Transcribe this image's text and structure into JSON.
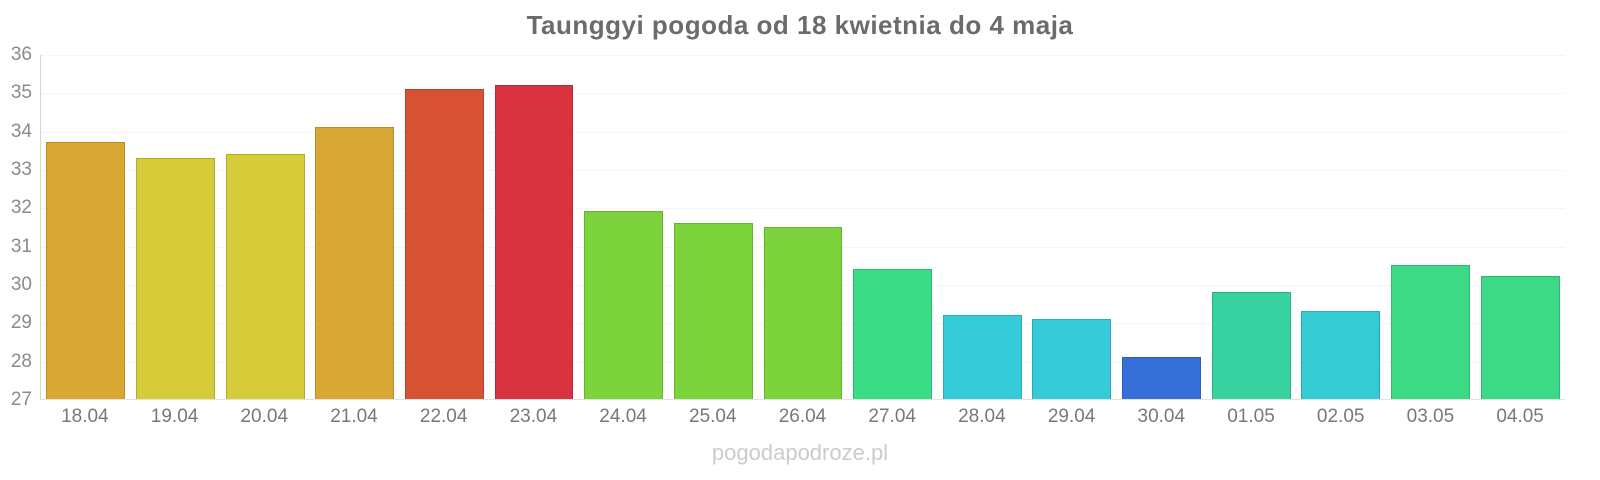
{
  "watermark": "pogodapodroze.pl",
  "chart_data": {
    "type": "bar",
    "title": "Taunggyi pogoda od 18 kwietnia do 4 maja",
    "xlabel": "",
    "ylabel": "",
    "ylim": [
      27,
      36
    ],
    "yticks": [
      36,
      35,
      34,
      33,
      32,
      31,
      30,
      29,
      28,
      27
    ],
    "grid": true,
    "legend": false,
    "categories": [
      "18.04",
      "19.04",
      "20.04",
      "21.04",
      "22.04",
      "23.04",
      "24.04",
      "25.04",
      "26.04",
      "27.04",
      "28.04",
      "29.04",
      "30.04",
      "01.05",
      "02.05",
      "03.05",
      "04.05"
    ],
    "values": [
      33.7,
      33.3,
      33.4,
      34.1,
      35.1,
      35.2,
      31.9,
      31.6,
      31.5,
      30.4,
      29.2,
      29.1,
      28.1,
      29.8,
      29.3,
      30.5,
      30.2
    ],
    "colors": [
      "#d9a834",
      "#d6cc39",
      "#d6cc39",
      "#d9a834",
      "#d65232",
      "#d8333e",
      "#7cd33c",
      "#7cd33c",
      "#7cd33c",
      "#3adc86",
      "#35cbd8",
      "#35cbd8",
      "#376fd8",
      "#38d2a0",
      "#35cbd4",
      "#3cda84",
      "#3cda86"
    ]
  }
}
